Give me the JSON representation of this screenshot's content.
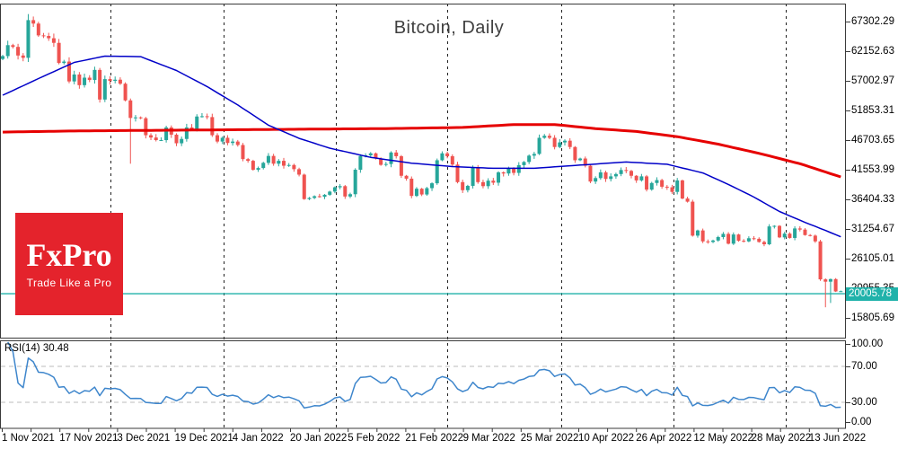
{
  "window": {
    "title": "Bitcoin, Daily"
  },
  "logo": {
    "name": "FxPro",
    "tagline": "Trade Like a Pro"
  },
  "indicator": {
    "label": "RSI(14) 30.48"
  },
  "price_scale": {
    "current": "20005.78"
  },
  "rsi_scale": {
    "labels": [
      "100.00",
      "70.00",
      "30.00",
      "0.00"
    ]
  },
  "dates": [
    "1 Nov 2021",
    "17 Nov 2021",
    "3 Dec 2021",
    "19 Dec 2021",
    "4 Jan 2022",
    "20 Jan 2022",
    "5 Feb 2022",
    "21 Feb 2022",
    "9 Mar 2022",
    "25 Mar 2022",
    "10 Apr 2022",
    "26 Apr 2022",
    "12 May 2022",
    "28 May 2022",
    "13 Jun 2022"
  ],
  "colors": {
    "bull": "#26a69a",
    "bear": "#ef5350",
    "ma_fast_blue": "#0000c8",
    "ma_slow_red": "#e60000",
    "rsi_line": "#3e86cc",
    "price_line": "#20b2aa",
    "price_tag_bg": "#20b2aa",
    "logo_bg": "#e4232c",
    "grid": "#222222",
    "rsi_level": "#bbbbbb",
    "frame": "#3a3a3a"
  },
  "chart_data": {
    "type": "candlestick",
    "title": "Bitcoin, Daily",
    "symbol": "Bitcoin",
    "timeframe": "Daily",
    "x_axis_dates": [
      "1 Nov 2021",
      "17 Nov 2021",
      "3 Dec 2021",
      "19 Dec 2021",
      "4 Jan 2022",
      "20 Jan 2022",
      "5 Feb 2022",
      "21 Feb 2022",
      "9 Mar 2022",
      "25 Mar 2022",
      "10 Apr 2022",
      "26 Apr 2022",
      "12 May 2022",
      "28 May 2022",
      "13 Jun 2022"
    ],
    "price_axis_ticks": [
      67302.29,
      62152.63,
      57002.97,
      51853.31,
      46703.65,
      41553.99,
      36404.33,
      31254.67,
      26105.01,
      20955.35,
      15805.69
    ],
    "current_price": 20005.78,
    "open_first": 60800,
    "closes": [
      61300,
      63200,
      62900,
      61400,
      61000,
      67550,
      66950,
      64900,
      64800,
      64400,
      63600,
      60100,
      60350,
      56900,
      58100,
      56250,
      57550,
      57150,
      58900,
      53750,
      57300,
      57000,
      57200,
      56500,
      53600,
      50550,
      50650,
      50500,
      47550,
      47150,
      46700,
      46700,
      48900,
      47650,
      46150,
      46900,
      48900,
      48600,
      50800,
      50850,
      50700,
      47550,
      46450,
      47100,
      46200,
      46450,
      45850,
      43400,
      43100,
      41550,
      41850,
      42750,
      43950,
      42600,
      43100,
      42250,
      42375,
      41650,
      40700,
      36450,
      36650,
      36950,
      36850,
      37200,
      37750,
      38500,
      38700,
      36900,
      37300,
      41550,
      43950,
      44050,
      44400,
      43500,
      42400,
      42550,
      44550,
      43900,
      40500,
      40000,
      37000,
      38250,
      37250,
      38350,
      39200,
      43200,
      44400,
      43900,
      42450,
      39400,
      38000,
      38750,
      41950,
      39400,
      38700,
      39650,
      39300,
      41100,
      40900,
      41750,
      41000,
      42350,
      42900,
      44000,
      44300,
      47100,
      47450,
      47100,
      45500,
      46300,
      46600,
      45500,
      43200,
      43500,
      42250,
      39500,
      40100,
      41100,
      39950,
      40400,
      40800,
      41500,
      41350,
      40500,
      39700,
      40400,
      38100,
      39250,
      39750,
      38600,
      38500,
      37700,
      39700,
      36550,
      36000,
      30100,
      31000,
      29100,
      29000,
      29250,
      29850,
      30400,
      28700,
      30300,
      29200,
      29100,
      29650,
      29550,
      29000,
      28600,
      31700,
      31800,
      29800,
      30450,
      29700,
      31350,
      31150,
      30200,
      30100,
      29100,
      22500,
      22100,
      22550,
      20400,
      20450
    ],
    "wick_overrides": {
      "5": {
        "high": 68600
      },
      "25": {
        "low": 42600
      },
      "161": {
        "low": 17650
      },
      "162": {
        "low": 18400
      }
    },
    "ma_fast_blue_anchors": [
      [
        0,
        54500
      ],
      [
        8,
        57800
      ],
      [
        14,
        60200
      ],
      [
        20,
        61300
      ],
      [
        27,
        61200
      ],
      [
        34,
        58800
      ],
      [
        40,
        56000
      ],
      [
        46,
        52800
      ],
      [
        52,
        49300
      ],
      [
        58,
        47000
      ],
      [
        64,
        45300
      ],
      [
        72,
        43700
      ],
      [
        80,
        42700
      ],
      [
        88,
        42100
      ],
      [
        96,
        41800
      ],
      [
        104,
        41800
      ],
      [
        112,
        42300
      ],
      [
        122,
        42900
      ],
      [
        130,
        42500
      ],
      [
        137,
        41000
      ],
      [
        142,
        39000
      ],
      [
        147,
        36800
      ],
      [
        152,
        34300
      ],
      [
        157,
        32400
      ],
      [
        161,
        31000
      ],
      [
        164,
        29900
      ]
    ],
    "ma_slow_red_anchors": [
      [
        0,
        48100
      ],
      [
        15,
        48300
      ],
      [
        30,
        48400
      ],
      [
        45,
        48500
      ],
      [
        60,
        48600
      ],
      [
        75,
        48700
      ],
      [
        90,
        48900
      ],
      [
        100,
        49400
      ],
      [
        108,
        49400
      ],
      [
        116,
        48700
      ],
      [
        124,
        48200
      ],
      [
        132,
        47300
      ],
      [
        140,
        46000
      ],
      [
        148,
        44400
      ],
      [
        156,
        42600
      ],
      [
        164,
        40300
      ]
    ],
    "rsi": {
      "period": 14,
      "current": 30.48,
      "levels": [
        70,
        30
      ],
      "axis_ticks": [
        100,
        70,
        30,
        0
      ]
    }
  }
}
